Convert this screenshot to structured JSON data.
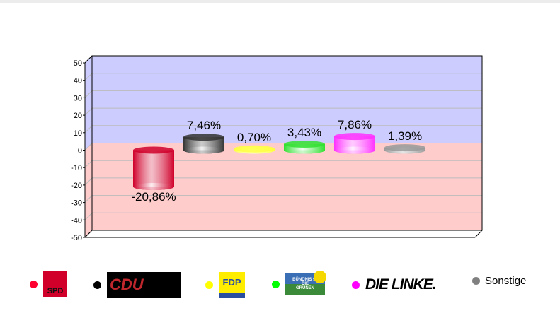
{
  "chart_data": {
    "type": "bar",
    "style": "3d-cylinder",
    "categories": [
      "SPD",
      "CDU",
      "FDP",
      "GRÜNE",
      "DIE LINKE",
      "Sonstige"
    ],
    "values": [
      -20.86,
      7.46,
      0.7,
      3.43,
      7.86,
      1.39
    ],
    "data_labels": [
      "-20,86%",
      "7,46%",
      "0,70%",
      "3,43%",
      "7,86%",
      "1,39%"
    ],
    "colors": [
      "#d0002a",
      "#333333",
      "#ffff40",
      "#30e030",
      "#ff30ff",
      "#999999"
    ],
    "ylim": [
      -50,
      50
    ],
    "yticks": [
      50,
      40,
      30,
      20,
      10,
      0,
      -10,
      -20,
      -30,
      -40,
      -50
    ],
    "grid": true,
    "positive_background": "#ccccff",
    "negative_background": "#ffcccc",
    "legend_placement": "bottom"
  },
  "legend": [
    {
      "name": "SPD",
      "color": "#ff0030",
      "logo_text": "SPD"
    },
    {
      "name": "CDU",
      "color": "#000000",
      "logo_text": "CDU"
    },
    {
      "name": "FDP",
      "color": "#ffff00",
      "logo_text": "FDP"
    },
    {
      "name": "GRÜNE",
      "color": "#00ff00",
      "logo_text": "BÜNDNIS 90 DIE GRÜNEN"
    },
    {
      "name": "DIE LINKE",
      "color": "#ff00ff",
      "logo_text": "DIE LINKE."
    },
    {
      "name": "Sonstige",
      "color": "#808080",
      "label": "Sonstige"
    }
  ]
}
